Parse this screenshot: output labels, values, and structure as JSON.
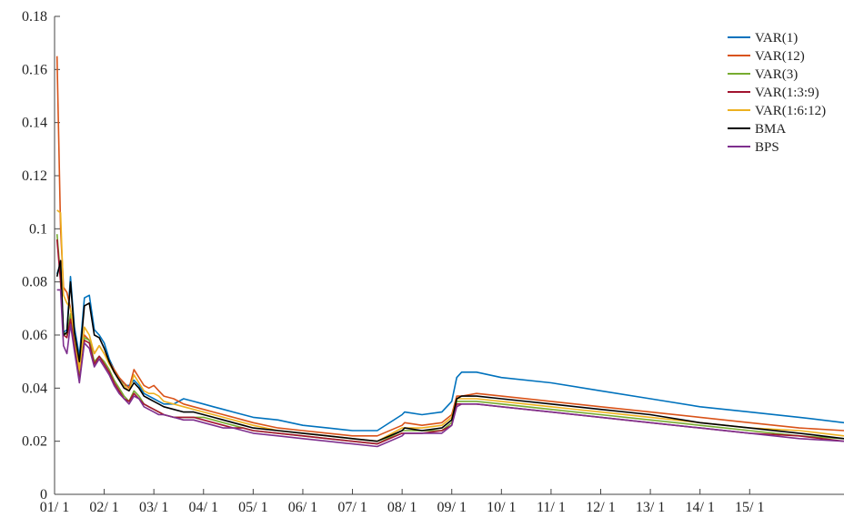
{
  "chart_data": {
    "type": "line",
    "title": "",
    "xlabel": "",
    "ylabel": "",
    "ylim": [
      0,
      0.18
    ],
    "xlim": [
      0,
      15.9
    ],
    "x_tick_labels": [
      "01/ 1",
      "02/ 1",
      "03/ 1",
      "04/ 1",
      "05/ 1",
      "06/ 1",
      "07/ 1",
      "08/ 1",
      "09/ 1",
      "10/ 1",
      "11/ 1",
      "12/ 1",
      "13/ 1",
      "14/ 1",
      "15/ 1"
    ],
    "x_tick_values": [
      0,
      1,
      2,
      3,
      4,
      5,
      6,
      7,
      8,
      9,
      10,
      11,
      12,
      13,
      14
    ],
    "y_ticks": [
      0,
      0.02,
      0.04,
      0.06,
      0.08,
      0.1,
      0.12,
      0.14,
      0.16,
      0.18
    ],
    "y_tick_labels": [
      "0",
      "0.02",
      "0.04",
      "0.06",
      "0.08",
      "0.1",
      "0.12",
      "0.14",
      "0.16",
      "0.18"
    ],
    "grid": false,
    "legend_position": "top-right",
    "x": [
      0.05,
      0.12,
      0.18,
      0.25,
      0.32,
      0.4,
      0.5,
      0.6,
      0.7,
      0.8,
      0.9,
      1.0,
      1.1,
      1.2,
      1.3,
      1.4,
      1.5,
      1.6,
      1.7,
      1.8,
      1.9,
      2.0,
      2.1,
      2.2,
      2.4,
      2.6,
      2.8,
      3.0,
      3.2,
      3.4,
      3.6,
      3.8,
      4.0,
      4.5,
      5.0,
      5.5,
      6.0,
      6.5,
      7.0,
      7.05,
      7.4,
      7.8,
      8.0,
      8.1,
      8.2,
      8.5,
      9.0,
      10.0,
      11.0,
      12.0,
      13.0,
      14.0,
      15.0,
      15.9
    ],
    "series": [
      {
        "name": "VAR(1)",
        "color": "#0072BD",
        "values": [
          0.083,
          0.087,
          0.061,
          0.062,
          0.082,
          0.063,
          0.052,
          0.074,
          0.075,
          0.062,
          0.06,
          0.057,
          0.051,
          0.047,
          0.044,
          0.041,
          0.041,
          0.043,
          0.041,
          0.038,
          0.037,
          0.036,
          0.035,
          0.034,
          0.034,
          0.036,
          0.035,
          0.034,
          0.033,
          0.032,
          0.031,
          0.03,
          0.029,
          0.028,
          0.026,
          0.025,
          0.024,
          0.024,
          0.03,
          0.031,
          0.03,
          0.031,
          0.035,
          0.044,
          0.046,
          0.046,
          0.044,
          0.042,
          0.039,
          0.036,
          0.033,
          0.031,
          0.029,
          0.027
        ]
      },
      {
        "name": "VAR(12)",
        "color": "#D95319",
        "values": [
          0.165,
          0.1,
          0.078,
          0.076,
          0.07,
          0.06,
          0.048,
          0.06,
          0.058,
          0.053,
          0.056,
          0.053,
          0.05,
          0.047,
          0.044,
          0.042,
          0.04,
          0.047,
          0.044,
          0.041,
          0.04,
          0.041,
          0.039,
          0.037,
          0.036,
          0.034,
          0.033,
          0.032,
          0.031,
          0.03,
          0.029,
          0.028,
          0.027,
          0.025,
          0.024,
          0.023,
          0.022,
          0.022,
          0.026,
          0.027,
          0.026,
          0.027,
          0.03,
          0.037,
          0.037,
          0.038,
          0.037,
          0.035,
          0.033,
          0.031,
          0.029,
          0.027,
          0.025,
          0.024
        ]
      },
      {
        "name": "VAR(3)",
        "color": "#77AC30",
        "values": [
          0.098,
          0.082,
          0.061,
          0.06,
          0.068,
          0.058,
          0.044,
          0.059,
          0.058,
          0.05,
          0.052,
          0.05,
          0.047,
          0.043,
          0.04,
          0.037,
          0.035,
          0.039,
          0.037,
          0.034,
          0.033,
          0.032,
          0.031,
          0.03,
          0.029,
          0.029,
          0.029,
          0.029,
          0.028,
          0.027,
          0.026,
          0.025,
          0.024,
          0.023,
          0.022,
          0.021,
          0.02,
          0.019,
          0.024,
          0.024,
          0.024,
          0.024,
          0.027,
          0.035,
          0.035,
          0.035,
          0.034,
          0.032,
          0.03,
          0.028,
          0.026,
          0.024,
          0.022,
          0.021
        ]
      },
      {
        "name": "VAR(1:3:9)",
        "color": "#A2142F",
        "values": [
          0.096,
          0.08,
          0.06,
          0.059,
          0.066,
          0.056,
          0.043,
          0.058,
          0.057,
          0.049,
          0.052,
          0.049,
          0.046,
          0.042,
          0.039,
          0.036,
          0.035,
          0.038,
          0.036,
          0.034,
          0.033,
          0.032,
          0.031,
          0.03,
          0.029,
          0.029,
          0.029,
          0.028,
          0.027,
          0.026,
          0.025,
          0.025,
          0.024,
          0.023,
          0.022,
          0.021,
          0.02,
          0.019,
          0.023,
          0.023,
          0.023,
          0.024,
          0.026,
          0.034,
          0.034,
          0.034,
          0.033,
          0.031,
          0.029,
          0.027,
          0.025,
          0.023,
          0.022,
          0.02
        ]
      },
      {
        "name": "VAR(1:6:12)",
        "color": "#EDB120",
        "values": [
          0.107,
          0.106,
          0.075,
          0.072,
          0.07,
          0.06,
          0.047,
          0.063,
          0.06,
          0.053,
          0.056,
          0.053,
          0.049,
          0.046,
          0.043,
          0.041,
          0.039,
          0.045,
          0.042,
          0.039,
          0.038,
          0.038,
          0.037,
          0.035,
          0.034,
          0.033,
          0.032,
          0.031,
          0.03,
          0.029,
          0.028,
          0.027,
          0.026,
          0.024,
          0.023,
          0.022,
          0.021,
          0.02,
          0.025,
          0.025,
          0.025,
          0.026,
          0.029,
          0.036,
          0.036,
          0.036,
          0.035,
          0.033,
          0.031,
          0.029,
          0.027,
          0.025,
          0.024,
          0.022
        ]
      },
      {
        "name": "BMA",
        "color": "#000000",
        "values": [
          0.082,
          0.088,
          0.06,
          0.061,
          0.08,
          0.061,
          0.05,
          0.071,
          0.072,
          0.06,
          0.059,
          0.055,
          0.05,
          0.046,
          0.043,
          0.04,
          0.039,
          0.042,
          0.04,
          0.037,
          0.036,
          0.035,
          0.034,
          0.033,
          0.032,
          0.031,
          0.031,
          0.03,
          0.029,
          0.028,
          0.027,
          0.026,
          0.025,
          0.024,
          0.023,
          0.022,
          0.021,
          0.02,
          0.024,
          0.025,
          0.024,
          0.025,
          0.028,
          0.036,
          0.037,
          0.037,
          0.036,
          0.034,
          0.032,
          0.03,
          0.027,
          0.025,
          0.023,
          0.021
        ]
      },
      {
        "name": "BPS",
        "color": "#7E2F8E",
        "values": [
          0.077,
          0.077,
          0.056,
          0.053,
          0.064,
          0.054,
          0.042,
          0.057,
          0.055,
          0.048,
          0.051,
          0.048,
          0.045,
          0.041,
          0.038,
          0.036,
          0.034,
          0.037,
          0.036,
          0.033,
          0.032,
          0.031,
          0.03,
          0.03,
          0.029,
          0.028,
          0.028,
          0.027,
          0.026,
          0.025,
          0.025,
          0.024,
          0.023,
          0.022,
          0.021,
          0.02,
          0.019,
          0.018,
          0.022,
          0.023,
          0.023,
          0.023,
          0.026,
          0.033,
          0.034,
          0.034,
          0.033,
          0.031,
          0.029,
          0.027,
          0.025,
          0.023,
          0.021,
          0.02
        ]
      }
    ]
  }
}
